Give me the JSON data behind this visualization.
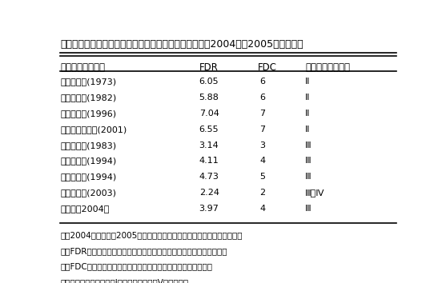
{
  "title": "表　アルファルファ国内育成品種の秋季休眠性と群別（2004年～2005年の平均）",
  "col_headers": [
    "品種名（育成年）",
    "FDR",
    "FDC",
    "従来法による群別"
  ],
  "rows": [
    [
      "ナツワカバ(1973)",
      "6.05",
      "6",
      "Ⅱ"
    ],
    [
      "タチワカバ(1982)",
      "5.88",
      "6",
      "Ⅱ"
    ],
    [
      "ツユワカバ(1996)",
      "7.04",
      "7",
      "Ⅱ"
    ],
    [
      "ネオタチワカバ(2001)",
      "6.55",
      "7",
      "Ⅱ"
    ],
    [
      "キタワカバ(1983)",
      "3.14",
      "3",
      "Ⅲ"
    ],
    [
      "マキワカバ(1994)",
      "4.11",
      "4",
      "Ⅲ"
    ],
    [
      "ヒサワカバ(1994)",
      "4.73",
      "5",
      "Ⅲ"
    ],
    [
      "ハルワカバ(2003)",
      "2.24",
      "2",
      "Ⅲ～Ⅳ"
    ],
    [
      "ケレス（2004）",
      "3.97",
      "4",
      "Ⅲ"
    ]
  ],
  "footnotes": [
    "注）2004年は札幌、2005年は札幌、芽室、紋別で秋季休眠性を評価した",
    "　　FDR：カリフォルニア大学の標準品種の回帰式により導いた計算値",
    "　　FDC：アルファルファ証明種子協会で用いられている分類値",
    "　　従来法による群別：Ⅰ、暖地向け　～　Ⅴ、寒地向け"
  ],
  "bg_color": "#ffffff",
  "text_color": "#000000",
  "font_size": 8.0,
  "title_font_size": 9.0,
  "header_font_size": 8.5,
  "footnote_font_size": 7.5
}
